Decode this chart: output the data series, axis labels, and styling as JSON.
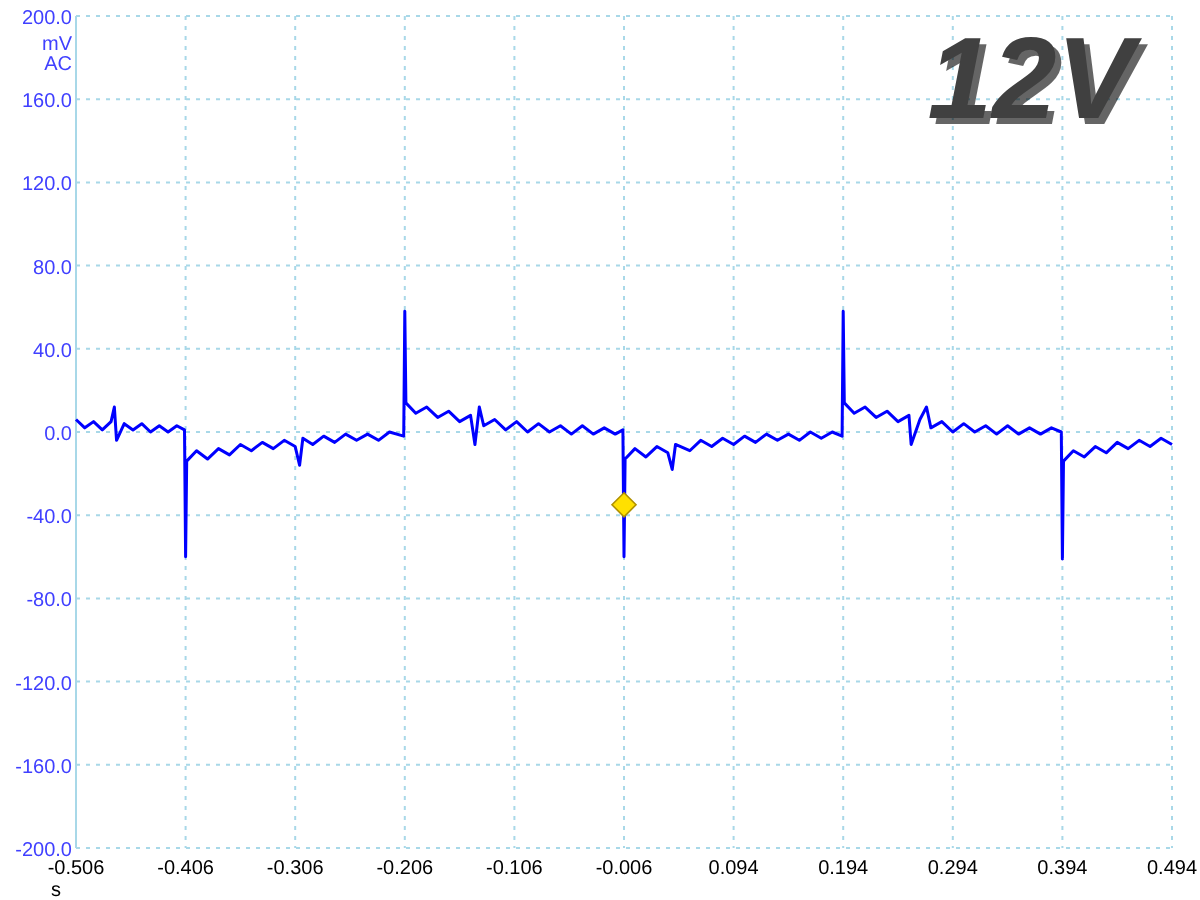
{
  "chart_data": {
    "type": "line",
    "title": "12V",
    "xlabel": "s",
    "ylabel": "mV AC",
    "xlim": [
      -0.506,
      0.494
    ],
    "xticks": [
      -0.506,
      -0.406,
      -0.306,
      -0.206,
      -0.106,
      -0.006,
      0.094,
      0.194,
      0.294,
      0.394,
      0.494
    ],
    "ylim": [
      -200,
      200
    ],
    "yticks": [
      {
        "value": -200,
        "label": "-200.0"
      },
      {
        "value": -160,
        "label": "-160.0"
      },
      {
        "value": -120,
        "label": "-120.0"
      },
      {
        "value": -80,
        "label": "-80.0"
      },
      {
        "value": -40,
        "label": "-40.0"
      },
      {
        "value": 0,
        "label": "0.0"
      },
      {
        "value": 40,
        "label": "40.0"
      },
      {
        "value": 80,
        "label": "80.0"
      },
      {
        "value": 120,
        "label": "120.0"
      },
      {
        "value": 160,
        "label": "160.0"
      },
      {
        "value": 200,
        "label": "200.0"
      }
    ],
    "grid": true,
    "line_style": "solid",
    "series": [
      {
        "type": "line",
        "color": "#0000ff",
        "marker": "none",
        "x": [
          -0.506,
          -0.498,
          -0.49,
          -0.482,
          -0.474,
          -0.471,
          -0.469,
          -0.462,
          -0.454,
          -0.446,
          -0.438,
          -0.43,
          -0.422,
          -0.414,
          -0.407,
          -0.406,
          -0.405,
          -0.396,
          -0.386,
          -0.376,
          -0.366,
          -0.356,
          -0.346,
          -0.336,
          -0.326,
          -0.316,
          -0.306,
          -0.302,
          -0.299,
          -0.29,
          -0.28,
          -0.27,
          -0.26,
          -0.25,
          -0.24,
          -0.23,
          -0.22,
          -0.207,
          -0.206,
          -0.205,
          -0.196,
          -0.186,
          -0.176,
          -0.166,
          -0.156,
          -0.146,
          -0.142,
          -0.138,
          -0.134,
          -0.124,
          -0.114,
          -0.104,
          -0.094,
          -0.084,
          -0.074,
          -0.064,
          -0.054,
          -0.044,
          -0.034,
          -0.024,
          -0.014,
          -0.007,
          -0.006,
          -0.005,
          0.004,
          0.014,
          0.024,
          0.034,
          0.038,
          0.041,
          0.054,
          0.064,
          0.074,
          0.084,
          0.094,
          0.104,
          0.114,
          0.124,
          0.134,
          0.144,
          0.154,
          0.164,
          0.174,
          0.184,
          0.193,
          0.194,
          0.195,
          0.204,
          0.214,
          0.224,
          0.234,
          0.244,
          0.254,
          0.256,
          0.264,
          0.27,
          0.274,
          0.284,
          0.294,
          0.304,
          0.314,
          0.324,
          0.334,
          0.344,
          0.354,
          0.364,
          0.374,
          0.384,
          0.393,
          0.394,
          0.395,
          0.404,
          0.414,
          0.424,
          0.434,
          0.444,
          0.454,
          0.464,
          0.474,
          0.484,
          0.494
        ],
        "values": [
          6,
          2,
          5,
          1,
          5,
          12,
          -4,
          4,
          1,
          4,
          0,
          3,
          0,
          3,
          1,
          -60,
          -14,
          -9,
          -13,
          -8,
          -11,
          -6,
          -9,
          -5,
          -8,
          -4,
          -7,
          -16,
          -3,
          -6,
          -2,
          -5,
          -1,
          -4,
          -1,
          -4,
          0,
          -2,
          58,
          14,
          9,
          12,
          7,
          10,
          5,
          8,
          -6,
          12,
          3,
          6,
          1,
          5,
          0,
          4,
          0,
          3,
          -1,
          3,
          -1,
          2,
          -1,
          1,
          -60,
          -13,
          -8,
          -12,
          -7,
          -10,
          -18,
          -6,
          -9,
          -4,
          -7,
          -3,
          -6,
          -2,
          -5,
          -1,
          -4,
          -1,
          -4,
          0,
          -3,
          0,
          -2,
          58,
          14,
          9,
          12,
          7,
          10,
          5,
          8,
          -6,
          6,
          12,
          2,
          5,
          0,
          4,
          0,
          3,
          -1,
          3,
          -1,
          2,
          -1,
          2,
          0,
          -61,
          -14,
          -9,
          -12,
          -7,
          -10,
          -5,
          -8,
          -4,
          -7,
          -3,
          -6
        ]
      },
      {
        "type": "scatter",
        "color": "#ffe000",
        "marker": "diamond",
        "x": [
          -0.006
        ],
        "values": [
          -35
        ]
      }
    ]
  }
}
